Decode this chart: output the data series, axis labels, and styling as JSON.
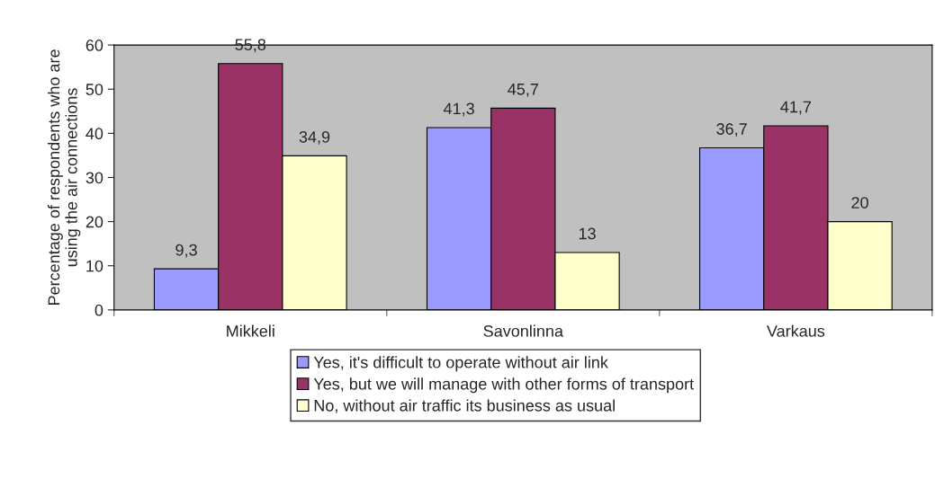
{
  "chart_data": {
    "type": "bar",
    "ylabel": "Percentage of respondents who are\nusing the air connections",
    "categories": [
      "Mikkeli",
      "Savonlinna",
      "Varkaus"
    ],
    "series": [
      {
        "name": "Yes, it's difficult to operate without air link",
        "color": "#9999ff",
        "values": [
          9.3,
          41.3,
          36.7
        ],
        "value_labels": [
          "9,3",
          "41,3",
          "36,7"
        ]
      },
      {
        "name": "Yes, but we will manage with other forms of transport",
        "color": "#993366",
        "values": [
          55.8,
          45.7,
          41.7
        ],
        "value_labels": [
          "55,8",
          "45,7",
          "41,7"
        ]
      },
      {
        "name": "No, without air traffic its business as usual",
        "color": "#ffffcc",
        "values": [
          34.9,
          13,
          20
        ],
        "value_labels": [
          "34,9",
          "13",
          "20"
        ]
      }
    ],
    "ylim": [
      0,
      60
    ],
    "yticks": [
      0,
      10,
      20,
      30,
      40,
      50,
      60
    ],
    "grid": false,
    "legend": "bottom"
  }
}
